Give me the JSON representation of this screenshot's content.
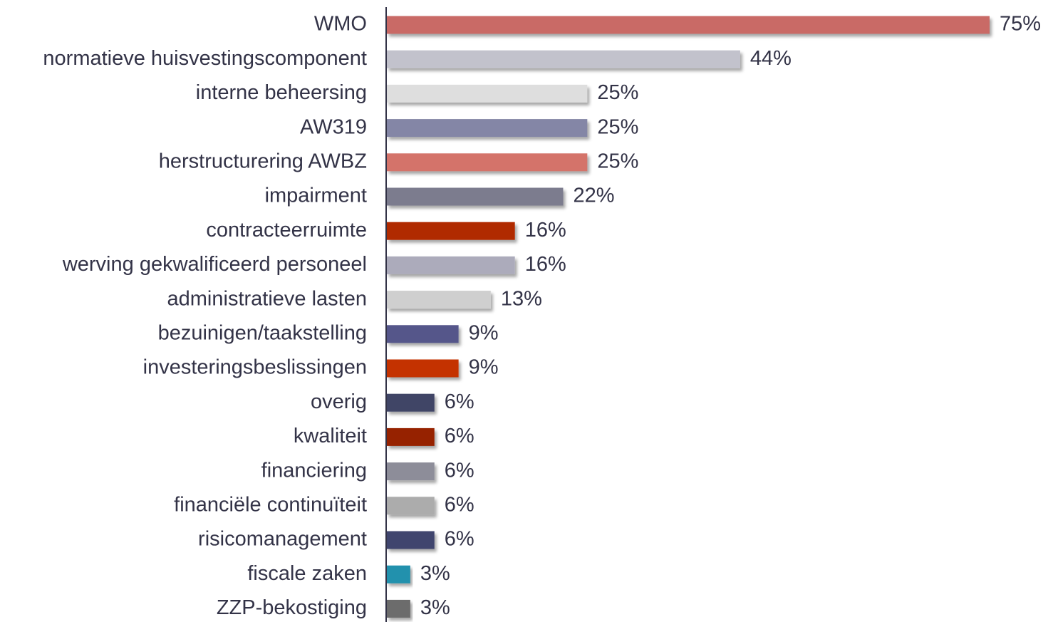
{
  "chart_data": {
    "type": "barh",
    "categories": [
      "WMO",
      "normatieve huisvestingscomponent",
      "interne beheersing",
      "AW319",
      "herstructurering AWBZ",
      "impairment",
      "contracteerruimte",
      "werving gekwalificeerd personeel",
      "administratieve lasten",
      "bezuinigen/taakstelling",
      "investeringsbeslissingen",
      "overig",
      "kwaliteit",
      "financiering",
      "financiële continuïteit",
      "risicomanagement",
      "fiscale zaken",
      "ZZP-bekostiging"
    ],
    "values": [
      75,
      44,
      25,
      25,
      25,
      22,
      16,
      16,
      13,
      9,
      9,
      6,
      6,
      6,
      6,
      6,
      3,
      3
    ],
    "value_labels": [
      "75%",
      "44%",
      "25%",
      "25%",
      "25%",
      "22%",
      "16%",
      "16%",
      "13%",
      "9%",
      "9%",
      "6%",
      "6%",
      "6%",
      "6%",
      "6%",
      "3%",
      "3%"
    ],
    "colors": [
      "#c96b66",
      "#c2c2cc",
      "#dedede",
      "#8486a6",
      "#d4736b",
      "#7b7b8e",
      "#b02a00",
      "#acabbb",
      "#cfcfcf",
      "#54568a",
      "#c43000",
      "#414466",
      "#962100",
      "#8d8d99",
      "#acacac",
      "#41446e",
      "#2291ad",
      "#6c6c6c"
    ]
  }
}
